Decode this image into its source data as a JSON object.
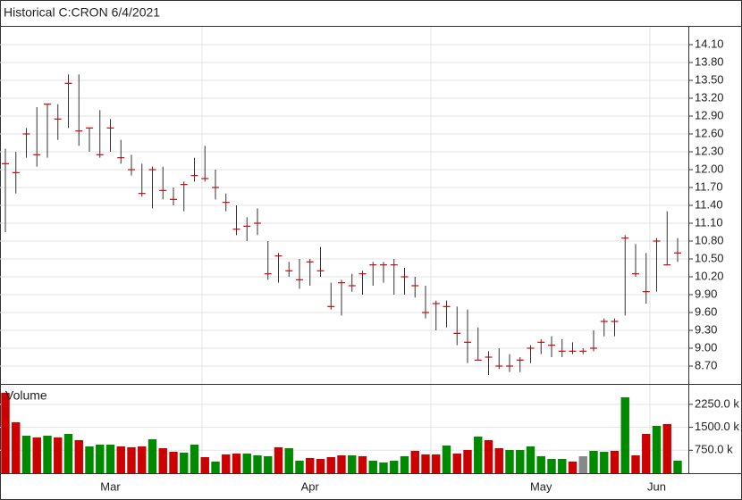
{
  "chart_data": [
    {
      "type": "ohlc",
      "title": "Historical C:CRON 6/4/2021",
      "categories": [
        null,
        null,
        null,
        null,
        null,
        null,
        null,
        null,
        null,
        null,
        "Mar",
        null,
        null,
        null,
        null,
        null,
        null,
        null,
        null,
        null,
        null,
        null,
        null,
        null,
        null,
        null,
        null,
        null,
        null,
        "Apr",
        null,
        null,
        null,
        null,
        null,
        null,
        null,
        null,
        null,
        null,
        null,
        null,
        null,
        null,
        null,
        null,
        null,
        null,
        null,
        null,
        null,
        "May",
        null,
        null,
        null,
        null,
        null,
        null,
        null,
        null,
        null,
        null,
        "Jun",
        null,
        null
      ],
      "open": [
        12.1,
        11.95,
        12.6,
        12.25,
        13.1,
        12.85,
        13.45,
        12.65,
        12.7,
        12.25,
        12.7,
        12.2,
        12.0,
        11.6,
        12.0,
        11.65,
        11.5,
        11.75,
        11.9,
        11.85,
        11.7,
        11.45,
        11.0,
        11.05,
        11.1,
        10.25,
        10.55,
        10.3,
        10.15,
        10.45,
        10.3,
        9.7,
        10.1,
        10.05,
        10.25,
        10.4,
        10.4,
        10.4,
        10.2,
        10.05,
        9.6,
        9.75,
        9.7,
        9.25,
        9.1,
        8.8,
        8.85,
        8.7,
        8.7,
        8.8,
        9.0,
        9.1,
        9.05,
        8.95,
        8.95,
        8.95,
        9.0,
        9.45,
        9.45,
        10.85,
        10.25,
        9.95,
        10.8,
        10.4,
        10.6
      ],
      "high": [
        12.35,
        12.3,
        12.7,
        13.05,
        13.1,
        13.1,
        13.6,
        13.6,
        12.7,
        13.0,
        12.85,
        12.5,
        12.25,
        12.1,
        12.05,
        12.05,
        11.7,
        11.8,
        12.2,
        12.4,
        12.0,
        11.6,
        11.4,
        11.2,
        11.35,
        10.8,
        10.6,
        10.45,
        10.5,
        10.5,
        10.7,
        10.1,
        10.15,
        10.25,
        10.3,
        10.45,
        10.45,
        10.5,
        10.35,
        10.2,
        10.05,
        9.8,
        9.8,
        9.7,
        9.65,
        9.35,
        8.95,
        9.0,
        8.9,
        8.85,
        9.05,
        9.15,
        9.2,
        9.15,
        9.1,
        9.0,
        9.3,
        9.5,
        9.5,
        10.9,
        10.75,
        10.6,
        10.85,
        11.3,
        10.85
      ],
      "low": [
        10.95,
        11.6,
        12.2,
        12.05,
        12.2,
        12.5,
        12.7,
        12.4,
        12.3,
        12.2,
        12.3,
        12.1,
        11.9,
        11.55,
        11.35,
        11.5,
        11.4,
        11.3,
        11.8,
        11.8,
        11.5,
        11.3,
        10.9,
        10.8,
        10.9,
        10.15,
        10.1,
        10.2,
        10.0,
        10.05,
        10.2,
        9.65,
        9.55,
        9.95,
        9.9,
        10.05,
        10.1,
        9.9,
        9.9,
        9.85,
        9.5,
        9.3,
        9.35,
        9.05,
        8.75,
        8.8,
        8.55,
        8.65,
        8.6,
        8.6,
        8.75,
        8.9,
        8.85,
        8.85,
        8.9,
        8.9,
        8.95,
        9.2,
        9.2,
        9.55,
        10.2,
        9.75,
        9.95,
        10.4,
        10.45
      ],
      "close": [
        12.1,
        11.95,
        12.6,
        12.25,
        13.1,
        12.85,
        13.45,
        12.65,
        12.7,
        12.25,
        12.7,
        12.2,
        12.0,
        11.6,
        12.0,
        11.65,
        11.5,
        11.75,
        11.9,
        11.85,
        11.7,
        11.45,
        11.0,
        11.05,
        11.1,
        10.25,
        10.55,
        10.3,
        10.15,
        10.45,
        10.3,
        9.7,
        10.1,
        10.05,
        10.25,
        10.4,
        10.4,
        10.4,
        10.2,
        10.05,
        9.6,
        9.75,
        9.7,
        9.25,
        9.1,
        8.8,
        8.85,
        8.7,
        8.7,
        8.8,
        9.0,
        9.1,
        9.05,
        8.95,
        8.95,
        8.95,
        9.0,
        9.45,
        9.45,
        10.85,
        10.25,
        9.95,
        10.8,
        10.4,
        10.6
      ],
      "color": "#333333",
      "tick_color": "#e00000",
      "ylim": [
        8.4,
        14.4
      ],
      "yticks": [
        {
          "value": 14.1,
          "label": "14.10"
        },
        {
          "value": 13.8,
          "label": "13.80"
        },
        {
          "value": 13.5,
          "label": "13.50"
        },
        {
          "value": 13.2,
          "label": "13.20"
        },
        {
          "value": 12.9,
          "label": "12.90"
        },
        {
          "value": 12.6,
          "label": "12.60"
        },
        {
          "value": 12.3,
          "label": "12.30"
        },
        {
          "value": 12.0,
          "label": "12.00"
        },
        {
          "value": 11.7,
          "label": "11.70"
        },
        {
          "value": 11.4,
          "label": "11.40"
        },
        {
          "value": 11.1,
          "label": "11.10"
        },
        {
          "value": 10.8,
          "label": "10.80"
        },
        {
          "value": 10.5,
          "label": "10.50"
        },
        {
          "value": 10.2,
          "label": "10.20"
        },
        {
          "value": 9.9,
          "label": "9.90"
        },
        {
          "value": 9.6,
          "label": "9.60"
        },
        {
          "value": 9.3,
          "label": "9.30"
        },
        {
          "value": 9.0,
          "label": "9.00"
        },
        {
          "value": 8.7,
          "label": "8.70"
        }
      ],
      "grid": true
    },
    {
      "type": "bar",
      "title": "Volume",
      "values": [
        2630,
        1665,
        1227,
        1170,
        1227,
        1170,
        1285,
        1080,
        877,
        935,
        935,
        877,
        847,
        877,
        1110,
        818,
        700,
        672,
        935,
        525,
        380,
        613,
        643,
        643,
        584,
        555,
        847,
        818,
        409,
        497,
        467,
        525,
        584,
        584,
        555,
        409,
        350,
        409,
        555,
        730,
        613,
        613,
        905,
        643,
        760,
        1198,
        1080,
        818,
        760,
        760,
        877,
        555,
        467,
        467,
        380,
        555,
        730,
        700,
        730,
        2480,
        584,
        1285,
        1548,
        1607,
        409
      ],
      "colors": [
        "#cc0000",
        "#cc0000",
        "#008a00",
        "#cc0000",
        "#008a00",
        "#cc0000",
        "#008a00",
        "#cc0000",
        "#008a00",
        "#008a00",
        "#008a00",
        "#cc0000",
        "#cc0000",
        "#cc0000",
        "#008a00",
        "#cc0000",
        "#cc0000",
        "#008a00",
        "#008a00",
        "#cc0000",
        "#008a00",
        "#cc0000",
        "#cc0000",
        "#008a00",
        "#008a00",
        "#008a00",
        "#cc0000",
        "#008a00",
        "#008a00",
        "#cc0000",
        "#cc0000",
        "#cc0000",
        "#cc0000",
        "#008a00",
        "#cc0000",
        "#008a00",
        "#008a00",
        "#008a00",
        "#008a00",
        "#cc0000",
        "#cc0000",
        "#cc0000",
        "#008a00",
        "#cc0000",
        "#cc0000",
        "#008a00",
        "#cc0000",
        "#cc0000",
        "#008a00",
        "#008a00",
        "#008a00",
        "#008a00",
        "#008a00",
        "#008a00",
        "#cc0000",
        "#888888",
        "#008a00",
        "#008a00",
        "#cc0000",
        "#008a00",
        "#cc0000",
        "#cc0000",
        "#008a00",
        "#cc0000",
        "#008a00"
      ],
      "ylim": [
        0,
        2860
      ],
      "yticks": [
        {
          "value": 2250,
          "label": "2250.0 k"
        },
        {
          "value": 1500,
          "label": "1500.0 k"
        },
        {
          "value": 750,
          "label": "750.0 k"
        }
      ],
      "grid": true
    }
  ]
}
